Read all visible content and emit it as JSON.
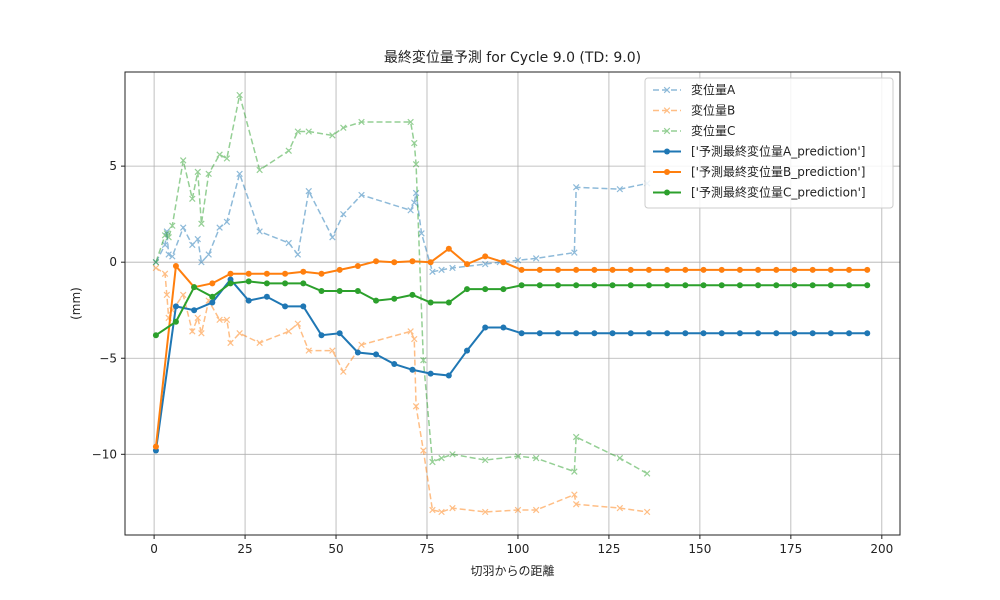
{
  "chart_data": {
    "type": "line",
    "title": "最終変位量予測 for Cycle 9.0 (TD: 9.0)",
    "xlabel": "切羽からの距離",
    "ylabel": "(mm)",
    "xlim": [
      -8,
      205
    ],
    "ylim": [
      -14.2,
      9.9
    ],
    "xticks": [
      0,
      25,
      50,
      75,
      100,
      125,
      150,
      175,
      200
    ],
    "yticks": [
      -10,
      -5,
      0,
      5
    ],
    "grid": true,
    "legend_position": "top-right",
    "series": [
      {
        "name": "変位量A",
        "color": "#1f77b4",
        "style": "dashed",
        "marker": "x",
        "alpha": 0.5,
        "points": [
          [
            0.5,
            0
          ],
          [
            3,
            0.9
          ],
          [
            3.5,
            1.6
          ],
          [
            4,
            0.4
          ],
          [
            5,
            0.3
          ],
          [
            8,
            1.8
          ],
          [
            10.5,
            0.9
          ],
          [
            12,
            1.2
          ],
          [
            13,
            0
          ],
          [
            15,
            0.4
          ],
          [
            18,
            1.8
          ],
          [
            20,
            2.1
          ],
          [
            23.5,
            4.6
          ],
          [
            29,
            1.6
          ],
          [
            37,
            1
          ],
          [
            39.5,
            0.4
          ],
          [
            42.5,
            3.7
          ],
          [
            49,
            1.3
          ],
          [
            52,
            2.5
          ],
          [
            57,
            3.5
          ],
          [
            70.5,
            2.7
          ],
          [
            71.5,
            3.1
          ],
          [
            72,
            3.6
          ],
          [
            73.5,
            1.5
          ],
          [
            76.5,
            -0.5
          ],
          [
            79,
            -0.4
          ],
          [
            82,
            -0.3
          ],
          [
            91,
            -0.1
          ],
          [
            95,
            0
          ],
          [
            100,
            0.1
          ],
          [
            105,
            0.2
          ],
          [
            115.5,
            0.5
          ],
          [
            116,
            3.9
          ],
          [
            128,
            3.8
          ],
          [
            135.5,
            4.1
          ]
        ]
      },
      {
        "name": "変位量B",
        "color": "#ff7f0e",
        "style": "dashed",
        "marker": "x",
        "alpha": 0.5,
        "points": [
          [
            0.5,
            -0.3
          ],
          [
            3,
            -0.6
          ],
          [
            3.5,
            -1.7
          ],
          [
            4,
            -2.9
          ],
          [
            5,
            -2.5
          ],
          [
            8,
            -1.7
          ],
          [
            10.5,
            -3.6
          ],
          [
            12,
            -2.9
          ],
          [
            13,
            -3.7
          ],
          [
            15,
            -2
          ],
          [
            18,
            -3
          ],
          [
            20,
            -3
          ],
          [
            21,
            -4.2
          ],
          [
            23.5,
            -3.7
          ],
          [
            29,
            -4.2
          ],
          [
            37,
            -3.6
          ],
          [
            39.5,
            -3.2
          ],
          [
            42.5,
            -4.6
          ],
          [
            49,
            -4.6
          ],
          [
            52,
            -5.7
          ],
          [
            57,
            -4.3
          ],
          [
            70.5,
            -3.6
          ],
          [
            71.5,
            -4
          ],
          [
            72,
            -7.5
          ],
          [
            74,
            -9.8
          ],
          [
            76.5,
            -12.9
          ],
          [
            79,
            -13
          ],
          [
            82,
            -12.8
          ],
          [
            91,
            -13
          ],
          [
            100,
            -12.9
          ],
          [
            105,
            -12.9
          ],
          [
            115.5,
            -12.1
          ],
          [
            116,
            -12.6
          ],
          [
            128,
            -12.8
          ],
          [
            135.5,
            -13
          ]
        ]
      },
      {
        "name": "変位量C",
        "color": "#2ca02c",
        "style": "dashed",
        "marker": "x",
        "alpha": 0.5,
        "points": [
          [
            0.5,
            0
          ],
          [
            3,
            1.4
          ],
          [
            3.5,
            1.5
          ],
          [
            4,
            1.3
          ],
          [
            5,
            1.9
          ],
          [
            8,
            5.3
          ],
          [
            10.5,
            3.3
          ],
          [
            12,
            4.7
          ],
          [
            13,
            2
          ],
          [
            15,
            4.6
          ],
          [
            18,
            5.6
          ],
          [
            20,
            5.4
          ],
          [
            23.5,
            8.7
          ],
          [
            29,
            4.8
          ],
          [
            37,
            5.8
          ],
          [
            39.5,
            6.8
          ],
          [
            42.5,
            6.8
          ],
          [
            49,
            6.6
          ],
          [
            52,
            7
          ],
          [
            57,
            7.3
          ],
          [
            70.5,
            7.3
          ],
          [
            71.5,
            6.2
          ],
          [
            72,
            5.1
          ],
          [
            74,
            -5.1
          ],
          [
            76.5,
            -10.4
          ],
          [
            79,
            -10.2
          ],
          [
            82,
            -10
          ],
          [
            91,
            -10.3
          ],
          [
            100,
            -10.1
          ],
          [
            105,
            -10.2
          ],
          [
            115.5,
            -10.9
          ],
          [
            116,
            -9.1
          ],
          [
            128,
            -10.2
          ],
          [
            135.5,
            -11
          ]
        ]
      },
      {
        "name": "['予測最終変位量A_prediction']",
        "color": "#1f77b4",
        "style": "solid",
        "marker": "o",
        "alpha": 1,
        "points": [
          [
            0.5,
            -9.8
          ],
          [
            6,
            -2.3
          ],
          [
            11,
            -2.5
          ],
          [
            16,
            -2.1
          ],
          [
            21,
            -0.9
          ],
          [
            26,
            -2
          ],
          [
            31,
            -1.8
          ],
          [
            36,
            -2.3
          ],
          [
            41,
            -2.3
          ],
          [
            46,
            -3.8
          ],
          [
            51,
            -3.7
          ],
          [
            56,
            -4.7
          ],
          [
            61,
            -4.8
          ],
          [
            66,
            -5.3
          ],
          [
            71,
            -5.6
          ],
          [
            76,
            -5.8
          ],
          [
            81,
            -5.9
          ],
          [
            86,
            -4.6
          ],
          [
            91,
            -3.4
          ],
          [
            96,
            -3.4
          ],
          [
            101,
            -3.7
          ],
          [
            106,
            -3.7
          ],
          [
            111,
            -3.7
          ],
          [
            116,
            -3.7
          ],
          [
            121,
            -3.7
          ],
          [
            126,
            -3.7
          ],
          [
            131,
            -3.7
          ],
          [
            136,
            -3.7
          ],
          [
            141,
            -3.7
          ],
          [
            146,
            -3.7
          ],
          [
            151,
            -3.7
          ],
          [
            156,
            -3.7
          ],
          [
            161,
            -3.7
          ],
          [
            166,
            -3.7
          ],
          [
            171,
            -3.7
          ],
          [
            176,
            -3.7
          ],
          [
            181,
            -3.7
          ],
          [
            186,
            -3.7
          ],
          [
            191,
            -3.7
          ],
          [
            196,
            -3.7
          ]
        ]
      },
      {
        "name": "['予測最終変位量B_prediction']",
        "color": "#ff7f0e",
        "style": "solid",
        "marker": "o",
        "alpha": 1,
        "points": [
          [
            0.5,
            -9.6
          ],
          [
            6,
            -0.2
          ],
          [
            11,
            -1.3
          ],
          [
            16,
            -1.1
          ],
          [
            21,
            -0.6
          ],
          [
            26,
            -0.6
          ],
          [
            31,
            -0.6
          ],
          [
            36,
            -0.6
          ],
          [
            41,
            -0.5
          ],
          [
            46,
            -0.6
          ],
          [
            51,
            -0.4
          ],
          [
            56,
            -0.2
          ],
          [
            61,
            0.05
          ],
          [
            66,
            0
          ],
          [
            71,
            0.05
          ],
          [
            76,
            0
          ],
          [
            81,
            0.7
          ],
          [
            86,
            -0.1
          ],
          [
            91,
            0.3
          ],
          [
            96,
            0
          ],
          [
            101,
            -0.4
          ],
          [
            106,
            -0.4
          ],
          [
            111,
            -0.4
          ],
          [
            116,
            -0.4
          ],
          [
            121,
            -0.4
          ],
          [
            126,
            -0.4
          ],
          [
            131,
            -0.4
          ],
          [
            136,
            -0.4
          ],
          [
            141,
            -0.4
          ],
          [
            146,
            -0.4
          ],
          [
            151,
            -0.4
          ],
          [
            156,
            -0.4
          ],
          [
            161,
            -0.4
          ],
          [
            166,
            -0.4
          ],
          [
            171,
            -0.4
          ],
          [
            176,
            -0.4
          ],
          [
            181,
            -0.4
          ],
          [
            186,
            -0.4
          ],
          [
            191,
            -0.4
          ],
          [
            196,
            -0.4
          ]
        ]
      },
      {
        "name": "['予測最終変位量C_prediction']",
        "color": "#2ca02c",
        "style": "solid",
        "marker": "o",
        "alpha": 1,
        "points": [
          [
            0.5,
            -3.8
          ],
          [
            6,
            -3.1
          ],
          [
            11,
            -1.3
          ],
          [
            16,
            -1.8
          ],
          [
            21,
            -1.1
          ],
          [
            26,
            -1
          ],
          [
            31,
            -1.1
          ],
          [
            36,
            -1.1
          ],
          [
            41,
            -1.1
          ],
          [
            46,
            -1.5
          ],
          [
            51,
            -1.5
          ],
          [
            56,
            -1.5
          ],
          [
            61,
            -2
          ],
          [
            66,
            -1.9
          ],
          [
            71,
            -1.7
          ],
          [
            76,
            -2.1
          ],
          [
            81,
            -2.1
          ],
          [
            86,
            -1.4
          ],
          [
            91,
            -1.4
          ],
          [
            96,
            -1.4
          ],
          [
            101,
            -1.2
          ],
          [
            106,
            -1.2
          ],
          [
            111,
            -1.2
          ],
          [
            116,
            -1.2
          ],
          [
            121,
            -1.2
          ],
          [
            126,
            -1.2
          ],
          [
            131,
            -1.2
          ],
          [
            136,
            -1.2
          ],
          [
            141,
            -1.2
          ],
          [
            146,
            -1.2
          ],
          [
            151,
            -1.2
          ],
          [
            156,
            -1.2
          ],
          [
            161,
            -1.2
          ],
          [
            166,
            -1.2
          ],
          [
            171,
            -1.2
          ],
          [
            176,
            -1.2
          ],
          [
            181,
            -1.2
          ],
          [
            186,
            -1.2
          ],
          [
            191,
            -1.2
          ],
          [
            196,
            -1.2
          ]
        ]
      }
    ]
  }
}
